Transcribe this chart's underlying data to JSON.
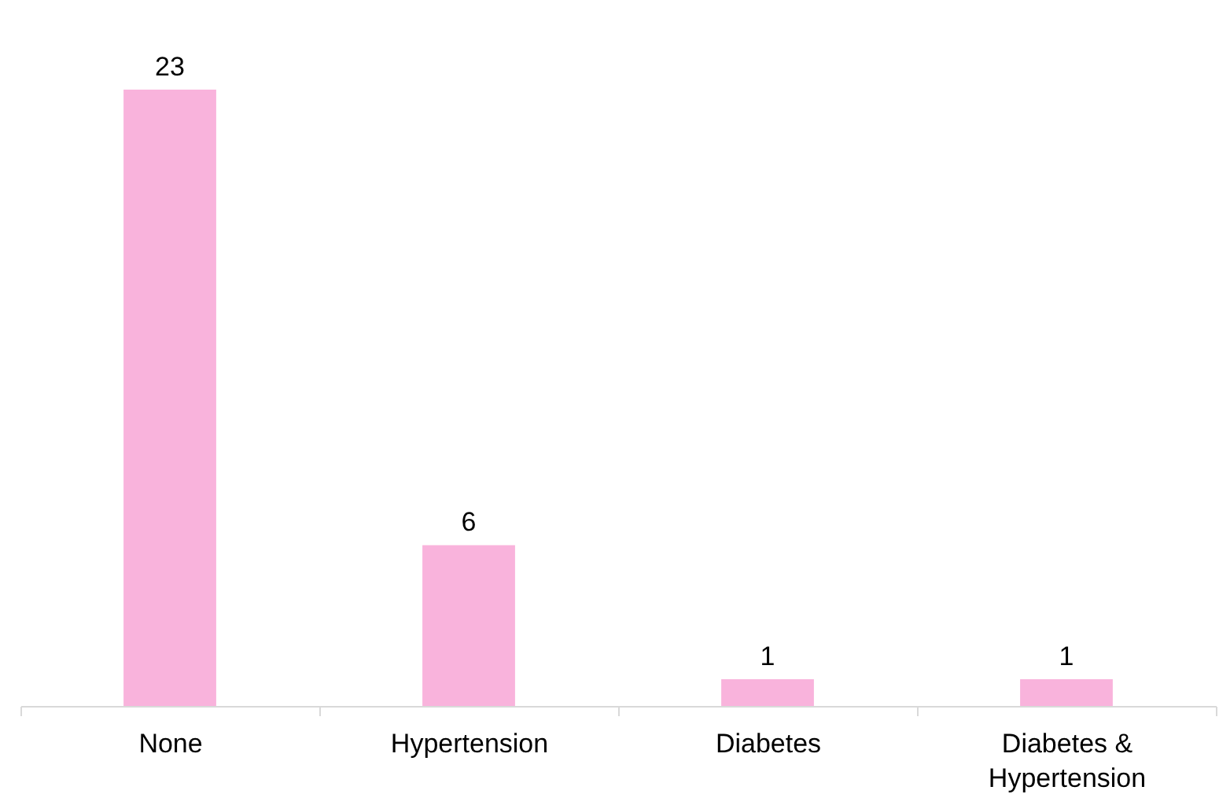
{
  "chart_data": {
    "type": "bar",
    "categories": [
      "None",
      "Hypertension",
      "Diabetes",
      "Diabetes & Hypertension"
    ],
    "values": [
      23,
      6,
      1,
      1
    ],
    "color": "#f9b3dc",
    "data_labels": true,
    "tick_labels": "x"
  }
}
